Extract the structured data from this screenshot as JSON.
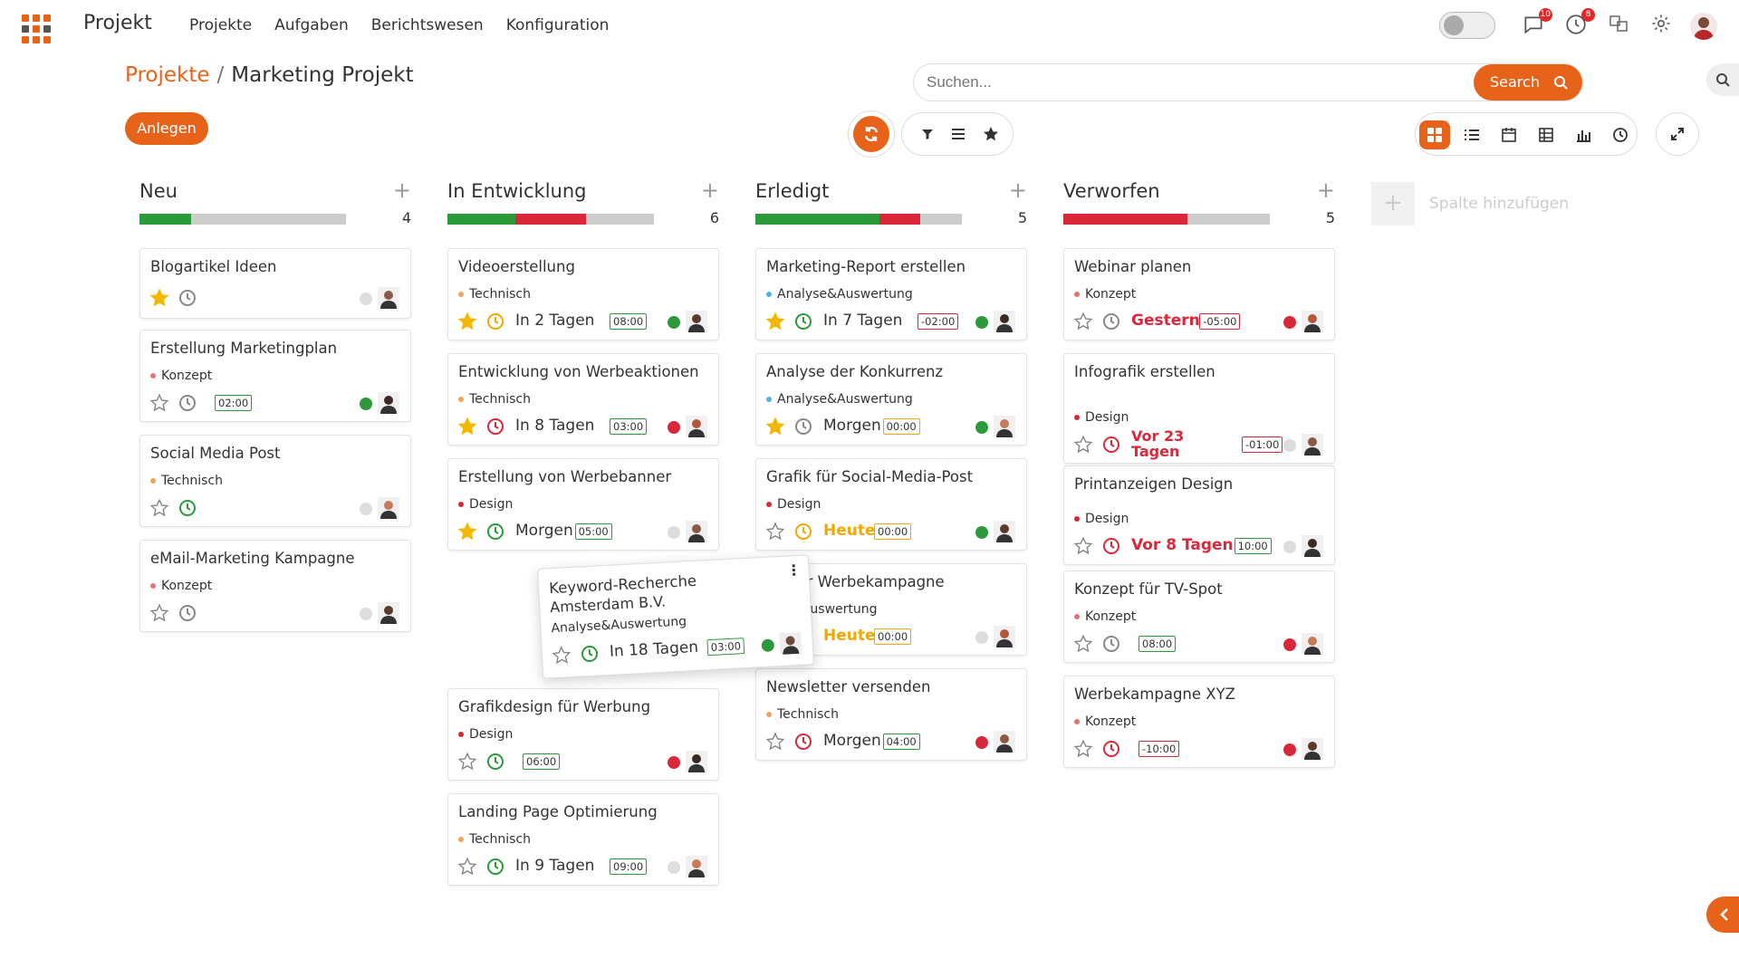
{
  "app": {
    "name": "Projekt",
    "nav": [
      "Projekte",
      "Aufgaben",
      "Berichtswesen",
      "Konfiguration"
    ],
    "badge_messages": "10",
    "badge_activities": "8"
  },
  "breadcrumb": {
    "parent": "Projekte",
    "current": "Marketing Projekt"
  },
  "create_label": "Anlegen",
  "search": {
    "placeholder": "Suchen...",
    "button": "Search"
  },
  "colors": {
    "accent": "#e8631a",
    "green": "#2c9a3b",
    "red": "#d9283a",
    "yellow": "#f2a800",
    "grey": "#cccccc"
  },
  "columns": [
    {
      "title": "Neu",
      "count": "4",
      "progress": [
        {
          "c": "#2c9a3b",
          "p": 25
        }
      ],
      "cards": [
        {
          "title": "Blogartikel Ideen",
          "tag": "",
          "tagColor": "",
          "starred": true,
          "clock": "grey",
          "due": "",
          "dueStyle": "",
          "time": "",
          "timeStyle": "",
          "status": "grey"
        },
        {
          "title": "Erstellung Marketingplan",
          "tag": "Konzept",
          "tagColor": "#e57373",
          "starred": false,
          "clock": "grey",
          "due": "",
          "dueStyle": "",
          "time": "02:00",
          "timeStyle": "g",
          "status": "green"
        },
        {
          "title": "Social Media Post",
          "tag": "Technisch",
          "tagColor": "#f0a35a",
          "starred": false,
          "clock": "green",
          "due": "",
          "dueStyle": "",
          "time": "",
          "timeStyle": "",
          "status": "grey"
        },
        {
          "title": "eMail-Marketing Kampagne",
          "tag": "Konzept",
          "tagColor": "#e57373",
          "starred": false,
          "clock": "grey",
          "due": "",
          "dueStyle": "",
          "time": "",
          "timeStyle": "",
          "status": "grey"
        }
      ]
    },
    {
      "title": "In Entwicklung",
      "count": "6",
      "progress": [
        {
          "c": "#2c9a3b",
          "p": 33
        },
        {
          "c": "#d9283a",
          "p": 34
        }
      ],
      "cards": [
        {
          "title": "Videoerstellung",
          "tag": "Technisch",
          "tagColor": "#f0a35a",
          "starred": true,
          "clock": "yellow",
          "due": "In 2 Tagen",
          "dueStyle": "",
          "time": "08:00",
          "timeStyle": "g",
          "status": "green"
        },
        {
          "title": "Entwicklung von Werbeaktionen",
          "tag": "Technisch",
          "tagColor": "#f0a35a",
          "starred": true,
          "clock": "red",
          "due": "In 8 Tagen",
          "dueStyle": "",
          "time": "03:00",
          "timeStyle": "g",
          "status": "red"
        },
        {
          "title": "Erstellung von Werbebanner",
          "tag": "Design",
          "tagColor": "#d9283a",
          "starred": true,
          "clock": "green",
          "due": "Morgen",
          "dueStyle": "",
          "time": "05:00",
          "timeStyle": "g",
          "status": "grey"
        },
        {
          "title": "Grafikdesign für Werbung",
          "tag": "Design",
          "tagColor": "#d9283a",
          "starred": false,
          "clock": "green",
          "due": "",
          "dueStyle": "",
          "time": "06:00",
          "timeStyle": "g",
          "status": "red"
        },
        {
          "title": "Landing Page Optimierung",
          "tag": "Technisch",
          "tagColor": "#f0a35a",
          "starred": false,
          "clock": "green",
          "due": "In 9 Tagen",
          "dueStyle": "",
          "time": "09:00",
          "timeStyle": "g",
          "status": "grey"
        }
      ]
    },
    {
      "title": "Erledigt",
      "count": "5",
      "progress": [
        {
          "c": "#2c9a3b",
          "p": 60
        },
        {
          "c": "#d9283a",
          "p": 20
        }
      ],
      "cards": [
        {
          "title": "Marketing-Report erstellen",
          "tag": "Analyse&Auswertung",
          "tagColor": "#4fb3e8",
          "starred": true,
          "clock": "green",
          "due": "In 7 Tagen",
          "dueStyle": "",
          "time": "-02:00",
          "timeStyle": "r",
          "status": "green"
        },
        {
          "title": "Analyse der Konkurrenz",
          "tag": "Analyse&Auswertung",
          "tagColor": "#4fb3e8",
          "starred": true,
          "clock": "grey",
          "due": "Morgen",
          "dueStyle": "",
          "time": "00:00",
          "timeStyle": "y",
          "status": "green"
        },
        {
          "title": "Grafik für Social-Media-Post",
          "tag": "Design",
          "tagColor": "#d9283a",
          "starred": false,
          "clock": "yellow",
          "due": "Heute",
          "dueStyle": "warn",
          "time": "00:00",
          "timeStyle": "y",
          "status": "green"
        },
        {
          "title": "se der Werbekampagne",
          "tag": "se&Auswertung",
          "tagColor": "",
          "starred": false,
          "clock": "",
          "due": "Heute",
          "dueStyle": "warn",
          "time": "00:00",
          "timeStyle": "y",
          "status": "grey"
        },
        {
          "title": "Newsletter versenden",
          "tag": "Technisch",
          "tagColor": "#f0a35a",
          "starred": false,
          "clock": "red",
          "due": "Morgen",
          "dueStyle": "",
          "time": "04:00",
          "timeStyle": "g",
          "status": "red"
        }
      ]
    },
    {
      "title": "Verworfen",
      "count": "5",
      "progress": [
        {
          "c": "#d9283a",
          "p": 60
        }
      ],
      "cards": [
        {
          "title": "Webinar planen",
          "tag": "Konzept",
          "tagColor": "#e57373",
          "starred": false,
          "clock": "grey",
          "due": "Gestern",
          "dueStyle": "late",
          "time": "-05:00",
          "timeStyle": "r",
          "status": "red"
        },
        {
          "title": "Infografik erstellen",
          "tag": "Design",
          "tagColor": "#d9283a",
          "starred": false,
          "clock": "red",
          "due": "Vor 23 Tagen",
          "dueStyle": "late",
          "time": "-01:00",
          "timeStyle": "r",
          "status": "grey"
        },
        {
          "title": "Printanzeigen Design",
          "tag": "Design",
          "tagColor": "#d9283a",
          "starred": false,
          "clock": "red",
          "due": "Vor 8 Tagen",
          "dueStyle": "late",
          "time": "10:00",
          "timeStyle": "g",
          "status": "grey"
        },
        {
          "title": "Konzept für TV-Spot",
          "tag": "Konzept",
          "tagColor": "#e57373",
          "starred": false,
          "clock": "grey",
          "due": "",
          "dueStyle": "",
          "time": "08:00",
          "timeStyle": "g",
          "status": "red"
        },
        {
          "title": "Werbekampagne XYZ",
          "tag": "Konzept",
          "tagColor": "#e57373",
          "starred": false,
          "clock": "red",
          "due": "",
          "dueStyle": "",
          "time": "-10:00",
          "timeStyle": "r",
          "status": "red"
        }
      ]
    }
  ],
  "dragged_card": {
    "title": "Keyword-Recherche",
    "subtitle": "Amsterdam B.V.",
    "tag": "Analyse&Auswertung",
    "due": "In 18 Tagen",
    "time": "03:00"
  },
  "add_column": "Spalte hinzufügen"
}
